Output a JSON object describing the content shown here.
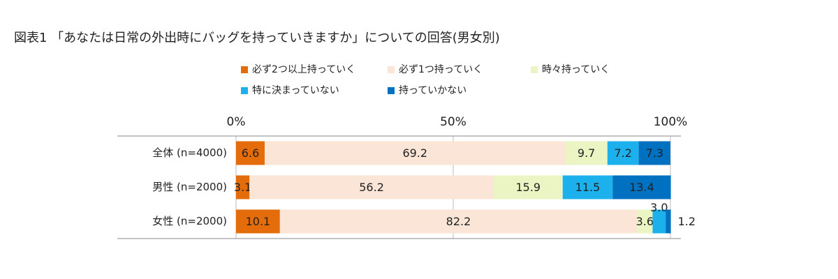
{
  "chart_data": {
    "type": "stacked-bar",
    "orientation": "horizontal",
    "title": "図表1 「あなたは日常の外出時にバッグを持っていきますか」についての回答(男女別)",
    "categories": [
      "全体 (n=4000)",
      "男性 (n=2000)",
      "女性 (n=2000)"
    ],
    "series": [
      {
        "name": "必ず2つ以上持っていく",
        "color": "#e46c0a",
        "values": [
          6.6,
          3.1,
          10.1
        ]
      },
      {
        "name": "必ず1つ持っていく",
        "color": "#fbe5d6",
        "values": [
          69.2,
          56.2,
          82.2
        ]
      },
      {
        "name": "時々持っていく",
        "color": "#ebf5c4",
        "values": [
          9.7,
          15.9,
          3.6
        ]
      },
      {
        "name": "特に決まっていない",
        "color": "#1cb0ec",
        "values": [
          7.2,
          11.5,
          3.0
        ],
        "value_labels": [
          "7.2",
          "11.5",
          "3.0"
        ]
      },
      {
        "name": "持っていかない",
        "color": "#0070c0",
        "values": [
          7.3,
          13.4,
          1.2
        ]
      }
    ],
    "xlim": [
      0,
      100
    ],
    "xticks": [
      {
        "value": 0,
        "label": "0%"
      },
      {
        "value": 50,
        "label": "50%"
      },
      {
        "value": 100,
        "label": "100%"
      }
    ],
    "grid": true,
    "legend": "top"
  }
}
